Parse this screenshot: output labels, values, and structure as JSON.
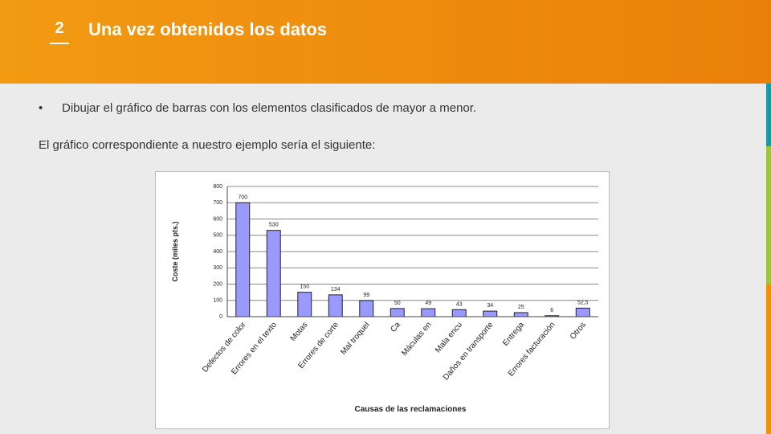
{
  "header": {
    "number": "2",
    "title": "Una vez obtenidos los datos"
  },
  "bullet": "Dibujar el gráfico de barras con los elementos clasificados de mayor a menor.",
  "paragraph": "El gráfico correspondiente a nuestro ejemplo sería el siguiente:",
  "chart_data": {
    "type": "bar",
    "xlabel": "Causas de las reclamaciones",
    "ylabel": "Coste (miles pts.)",
    "categories": [
      "Defectos de color",
      "Errores en el texto",
      "Motas",
      "Errores de corte",
      "Mal troquel",
      "Ca",
      "Máculas en",
      "Mala encu",
      "Daños en transporte",
      "Entrega",
      "Errores facturación",
      "Otros"
    ],
    "values": [
      700,
      530,
      150,
      134,
      99,
      50,
      49,
      43,
      34,
      25,
      6,
      52.5
    ],
    "value_labels": [
      "700",
      "530",
      "150",
      "134",
      "99",
      "50",
      "49",
      "43",
      "34",
      "25",
      "6",
      "52,5"
    ],
    "color": "#9999ff",
    "ylim": [
      0,
      800
    ],
    "yticks": [
      0,
      100,
      200,
      300,
      400,
      500,
      600,
      700,
      800
    ],
    "grid": true
  }
}
